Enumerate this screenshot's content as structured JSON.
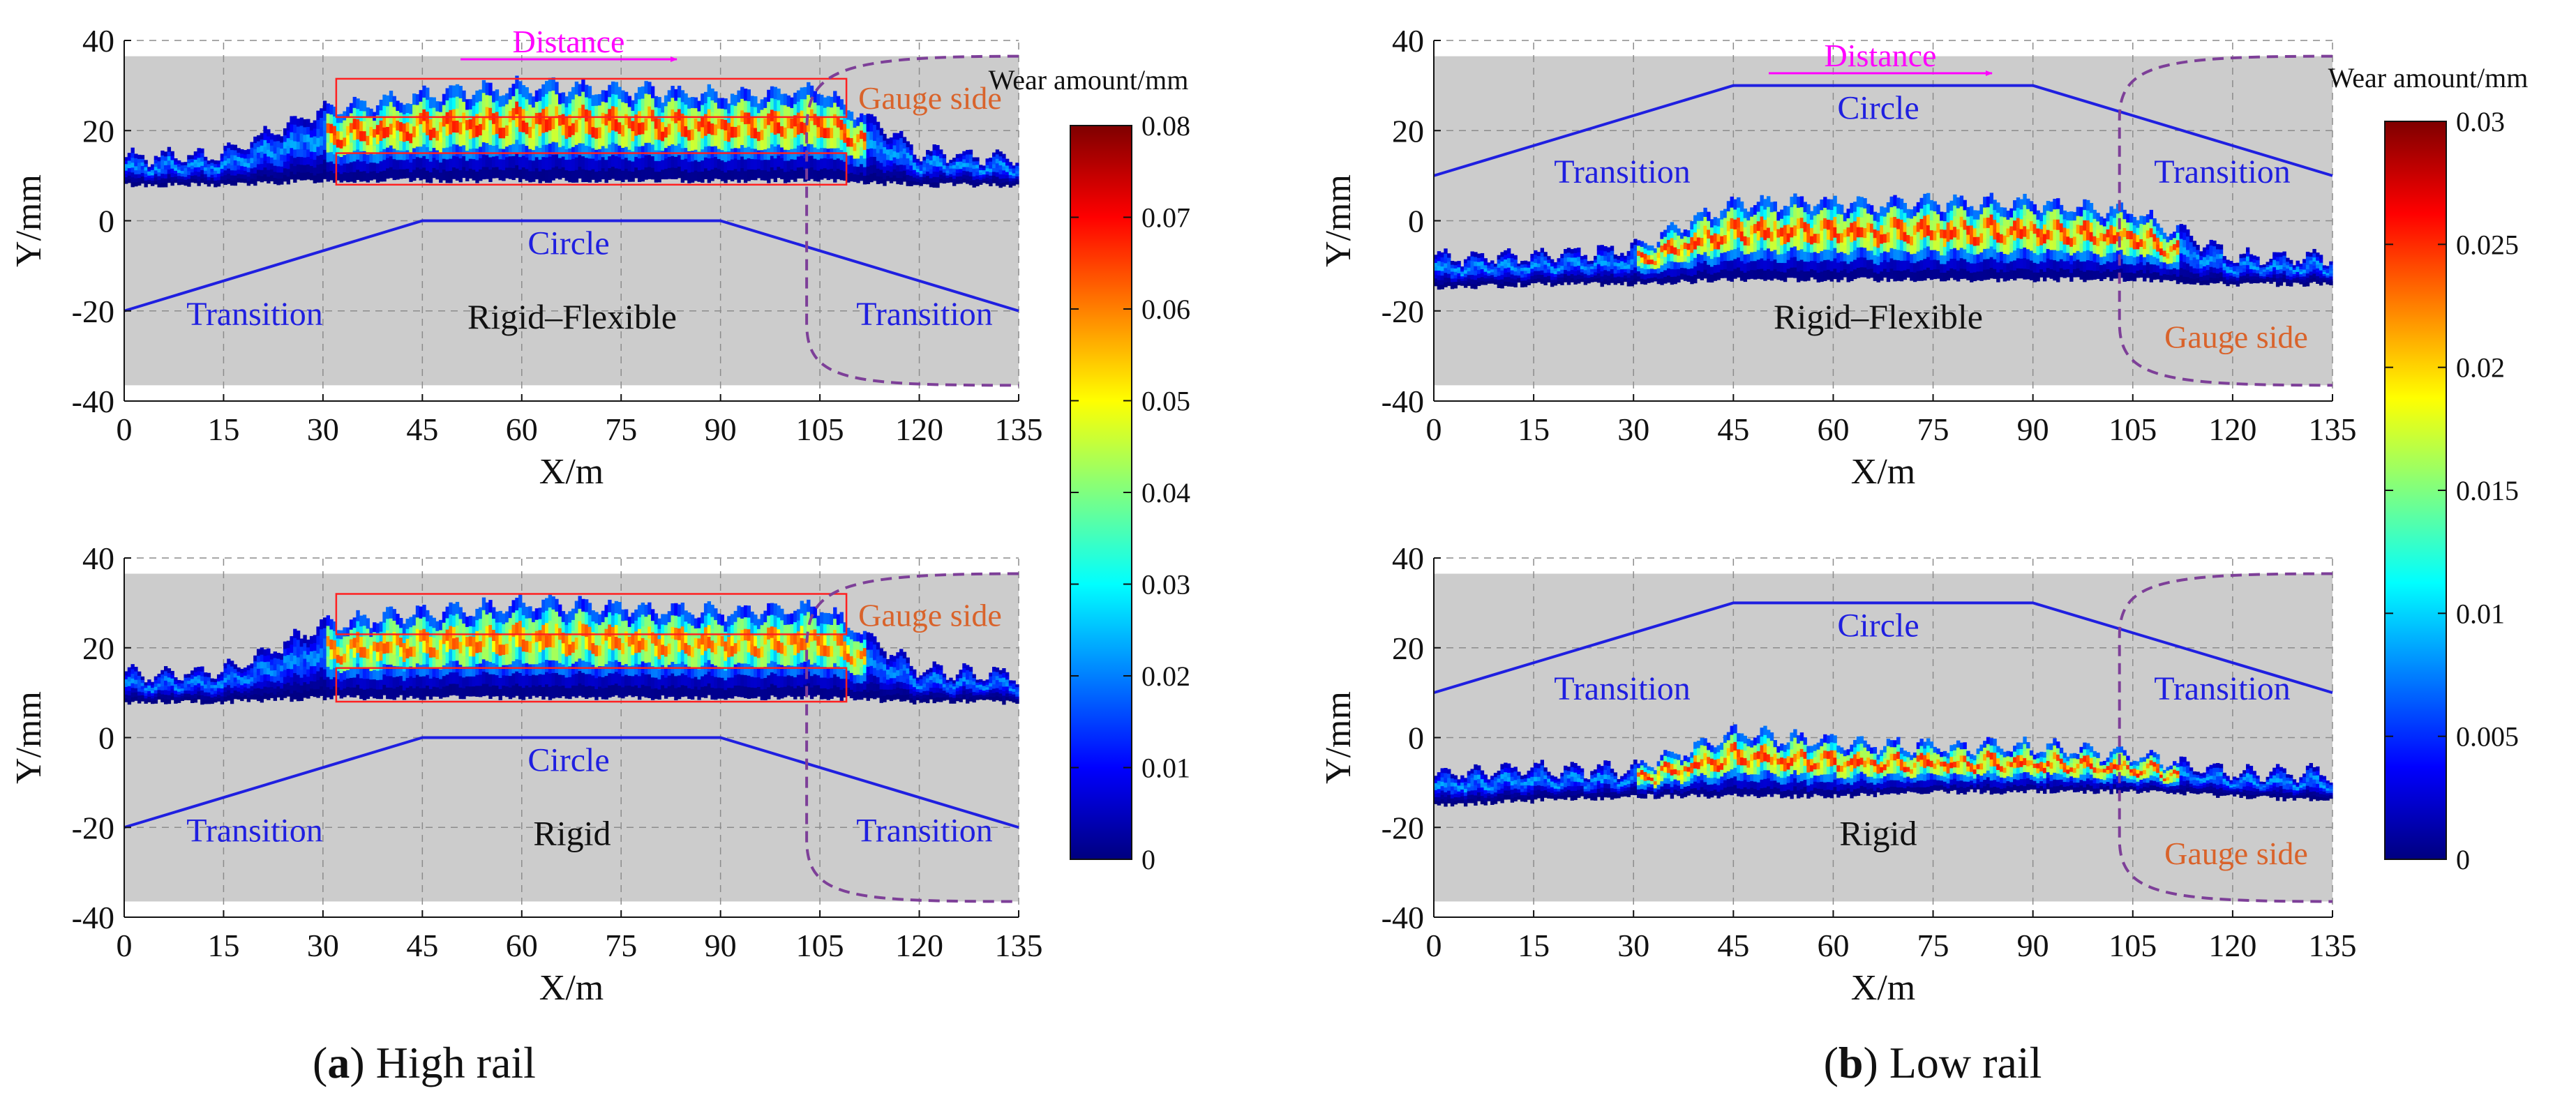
{
  "figure": {
    "panels": [
      {
        "key": "a",
        "label": "a",
        "caption": "High rail"
      },
      {
        "key": "b",
        "label": "b",
        "caption": "Low rail"
      }
    ]
  },
  "colors": {
    "track_line": "#1f1fe0",
    "gauge_line": "#7d3f98",
    "distance_arrow": "#ff00ff",
    "gauge_text": "#d9632b",
    "box": "#ff2020",
    "background": "#cccccc",
    "grid": "#8c8c8c"
  },
  "chart_data": [
    {
      "id": "a-top",
      "panel": "a",
      "type": "heatmap",
      "scheme": "jet",
      "title": "Rigid–Flexible",
      "xlabel": "X/m",
      "ylabel": "Y/mm",
      "xlim": [
        0,
        135
      ],
      "ylim": [
        -40,
        40
      ],
      "xticks": [
        0,
        15,
        30,
        45,
        60,
        75,
        90,
        105,
        120,
        135
      ],
      "yticks": [
        -40,
        -20,
        0,
        20,
        40
      ],
      "data_extent_y": [
        -36.5,
        36.5
      ],
      "track_alignment": {
        "x": [
          0,
          45,
          90,
          135
        ],
        "y": [
          -20,
          0,
          0,
          -20
        ]
      },
      "annotations": {
        "distance": "Distance",
        "gauge_side": "Gauge side",
        "transition_left": "Transition",
        "transition_right": "Transition",
        "circle": "Circle"
      },
      "boxes": [
        {
          "x": [
            32,
            109
          ],
          "y": [
            23,
            31.5
          ]
        },
        {
          "x": [
            32,
            109
          ],
          "y": [
            8,
            15
          ]
        }
      ],
      "wear_band": {
        "x_profile": [
          0,
          15,
          30,
          45,
          60,
          75,
          90,
          105,
          120,
          135
        ],
        "y_lower_mm": [
          8,
          8,
          9,
          9,
          9,
          9,
          9,
          9,
          8,
          8
        ],
        "y_upper_mm": [
          14,
          15,
          25,
          28,
          30,
          29,
          28,
          29,
          15,
          14
        ],
        "peak_wear_mm": 0.075
      }
    },
    {
      "id": "a-bottom",
      "panel": "a",
      "type": "heatmap",
      "scheme": "jet",
      "title": "Rigid",
      "xlabel": "X/m",
      "ylabel": "Y/mm",
      "xlim": [
        0,
        135
      ],
      "ylim": [
        -40,
        40
      ],
      "xticks": [
        0,
        15,
        30,
        45,
        60,
        75,
        90,
        105,
        120,
        135
      ],
      "yticks": [
        -40,
        -20,
        0,
        20,
        40
      ],
      "data_extent_y": [
        -36.5,
        36.5
      ],
      "track_alignment": {
        "x": [
          0,
          45,
          90,
          135
        ],
        "y": [
          -20,
          0,
          0,
          -20
        ]
      },
      "annotations": {
        "gauge_side": "Gauge side",
        "transition_left": "Transition",
        "transition_right": "Transition",
        "circle": "Circle"
      },
      "boxes": [
        {
          "x": [
            32,
            109
          ],
          "y": [
            23,
            32
          ]
        },
        {
          "x": [
            32,
            109
          ],
          "y": [
            8,
            15.5
          ]
        }
      ],
      "wear_band": {
        "x_profile": [
          0,
          15,
          30,
          45,
          60,
          75,
          90,
          105,
          120,
          135
        ],
        "y_lower_mm": [
          8,
          8,
          9,
          9,
          9,
          9,
          9,
          9,
          8,
          8
        ],
        "y_upper_mm": [
          14,
          15,
          25,
          28,
          30,
          29,
          28,
          29,
          15,
          14
        ],
        "peak_wear_mm": 0.07
      }
    },
    {
      "id": "a-colorbar",
      "panel": "a",
      "type": "colorbar",
      "label": "Wear amount/mm",
      "range": [
        0,
        0.08
      ],
      "ticks": [
        "0",
        "0.01",
        "0.02",
        "0.03",
        "0.04",
        "0.05",
        "0.06",
        "0.07",
        "0.08"
      ]
    },
    {
      "id": "b-top",
      "panel": "b",
      "type": "heatmap",
      "scheme": "jet",
      "title": "Rigid–Flexible",
      "xlabel": "X/m",
      "ylabel": "Y/mm",
      "xlim": [
        0,
        135
      ],
      "ylim": [
        -40,
        40
      ],
      "xticks": [
        0,
        15,
        30,
        45,
        60,
        75,
        90,
        105,
        120,
        135
      ],
      "yticks": [
        -40,
        -20,
        0,
        20,
        40
      ],
      "data_extent_y": [
        -36.5,
        36.5
      ],
      "track_alignment": {
        "x": [
          0,
          45,
          90,
          135
        ],
        "y": [
          10,
          30,
          30,
          10
        ]
      },
      "annotations": {
        "distance": "Distance",
        "gauge_side": "Gauge side",
        "transition_left": "Transition",
        "transition_right": "Transition",
        "circle": "Circle"
      },
      "wear_band": {
        "x_profile": [
          0,
          15,
          30,
          45,
          60,
          75,
          90,
          105,
          120,
          135
        ],
        "y_lower_mm": [
          -15,
          -14,
          -14,
          -13,
          -13,
          -13,
          -13,
          -13,
          -14,
          -14
        ],
        "y_upper_mm": [
          -8,
          -8,
          -6,
          4,
          4,
          4,
          4,
          2,
          -8,
          -8
        ],
        "peak_wear_mm": 0.028
      }
    },
    {
      "id": "b-bottom",
      "panel": "b",
      "type": "heatmap",
      "scheme": "jet",
      "title": "Rigid",
      "xlabel": "X/m",
      "ylabel": "Y/mm",
      "xlim": [
        0,
        135
      ],
      "ylim": [
        -40,
        40
      ],
      "xticks": [
        0,
        15,
        30,
        45,
        60,
        75,
        90,
        105,
        120,
        135
      ],
      "yticks": [
        -40,
        -20,
        0,
        20,
        40
      ],
      "data_extent_y": [
        -36.5,
        36.5
      ],
      "track_alignment": {
        "x": [
          0,
          45,
          90,
          135
        ],
        "y": [
          10,
          30,
          30,
          10
        ]
      },
      "annotations": {
        "gauge_side": "Gauge side",
        "transition_left": "Transition",
        "transition_right": "Transition",
        "circle": "Circle"
      },
      "wear_band": {
        "x_profile": [
          0,
          15,
          30,
          45,
          60,
          75,
          90,
          105,
          120,
          135
        ],
        "y_lower_mm": [
          -15,
          -14,
          -13,
          -13,
          -13,
          -12,
          -12,
          -12,
          -13,
          -14
        ],
        "y_upper_mm": [
          -8,
          -7,
          -7,
          1,
          -1,
          -2,
          -2,
          -4,
          -8,
          -8
        ],
        "peak_wear_mm": 0.028
      }
    },
    {
      "id": "b-colorbar",
      "panel": "b",
      "type": "colorbar",
      "label": "Wear amount/mm",
      "range": [
        0,
        0.03
      ],
      "ticks": [
        "0",
        "0.005",
        "0.01",
        "0.015",
        "0.02",
        "0.025",
        "0.03"
      ]
    }
  ]
}
